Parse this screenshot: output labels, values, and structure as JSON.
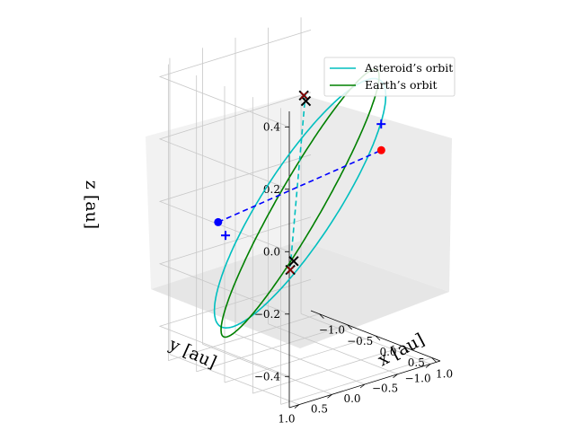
{
  "chart_data": {
    "type": "line",
    "projection": "3d",
    "grid": true,
    "legend_position": "top-right",
    "xlabel": "x [au]",
    "ylabel": "y [au]",
    "zlabel": "z [au]",
    "xlim": [
      -1.15,
      1.15
    ],
    "ylim": [
      -1.15,
      1.15
    ],
    "zlim": [
      -0.5,
      0.45
    ],
    "x_ticks": [
      "−1.0",
      "−0.5",
      "0.0",
      "0.5",
      "1.0"
    ],
    "y_ticks": [
      "−1.0",
      "−0.5",
      "0.0",
      "0.5",
      "1.0"
    ],
    "z_ticks": [
      "−0.4",
      "−0.2",
      "0.0",
      "0.2",
      "0.4"
    ],
    "x_tick_values": [
      -1.0,
      -0.5,
      0.0,
      0.5,
      1.0
    ],
    "y_tick_values": [
      -1.0,
      -0.5,
      0.0,
      0.5,
      1.0
    ],
    "z_tick_values": [
      -0.4,
      -0.2,
      0.0,
      0.2,
      0.4
    ],
    "series": [
      {
        "name": "Asteroid’s orbit",
        "color": "#00bfbf",
        "style": "solid",
        "semi_major_axis": 1.05,
        "eccentricity": 0.0,
        "inclination_deg": 20,
        "node_deg": 205
      },
      {
        "name": "Earth’s orbit",
        "color": "#008000",
        "style": "solid",
        "semi_major_axis": 1.0,
        "eccentricity": 0.0,
        "inclination_deg": 24,
        "node_deg": 215
      }
    ],
    "lines": [
      {
        "color": "#00bfbf",
        "style": "dashed",
        "from": [
          0.82,
          0.62,
          0.45
        ],
        "to": [
          -0.85,
          -0.58,
          -0.3
        ]
      },
      {
        "color": "#0000ff",
        "style": "dashed",
        "from": [
          -0.64,
          0.7,
          -0.06
        ],
        "to": [
          0.72,
          -0.62,
          0.18
        ]
      }
    ],
    "markers": [
      {
        "kind": "cross",
        "color": "#000000",
        "point": [
          0.78,
          0.58,
          0.42
        ]
      },
      {
        "kind": "cross",
        "color": "#000000",
        "point": [
          -0.72,
          -0.52,
          -0.27
        ]
      },
      {
        "kind": "cross",
        "color": "#000000",
        "point": [
          0.86,
          0.68,
          0.45
        ]
      },
      {
        "kind": "cross",
        "color": "#000000",
        "point": [
          -0.92,
          -0.64,
          -0.32
        ]
      },
      {
        "kind": "cross",
        "color": "#8b0000",
        "point": [
          0.86,
          0.68,
          0.45
        ]
      },
      {
        "kind": "cross",
        "color": "#8b0000",
        "point": [
          -0.92,
          -0.64,
          -0.32
        ]
      },
      {
        "kind": "dot",
        "color": "#0000ff",
        "point": [
          -0.64,
          0.7,
          -0.06
        ]
      },
      {
        "kind": "dot",
        "color": "#ff0000",
        "point": [
          0.72,
          -0.62,
          0.18
        ]
      },
      {
        "kind": "plus",
        "color": "#0000ff",
        "point": [
          0.45,
          -0.85,
          0.23
        ]
      },
      {
        "kind": "plus",
        "color": "#0000ff",
        "point": [
          -0.8,
          0.45,
          -0.13
        ]
      }
    ]
  }
}
